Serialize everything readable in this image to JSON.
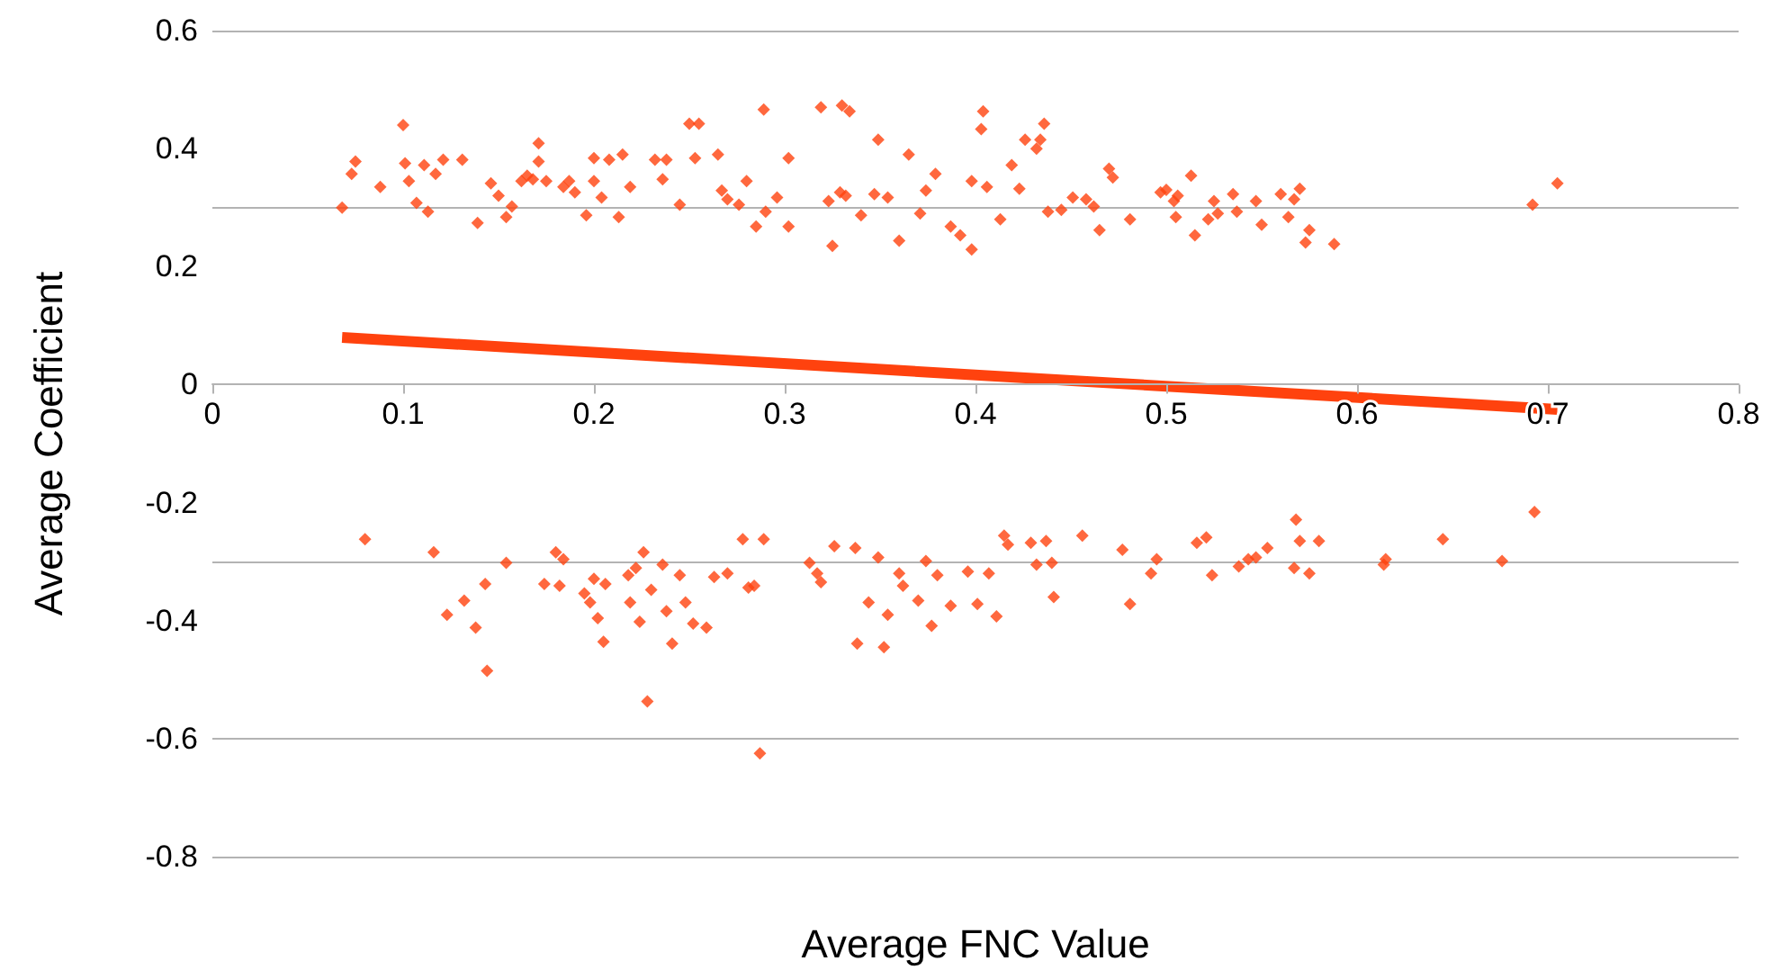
{
  "chart_data": {
    "type": "scatter",
    "xlabel": "Average FNC Value",
    "ylabel": "Average Coefficient",
    "xlim": [
      0,
      0.8
    ],
    "xticks": [
      0,
      0.1,
      0.2,
      0.3,
      0.4,
      0.5,
      0.6,
      0.7,
      0.8
    ],
    "ylim": [
      -0.8,
      0.6
    ],
    "yticks": [
      -0.8,
      -0.6,
      -0.4,
      -0.2,
      0,
      0.2,
      0.4,
      0.6
    ],
    "grid": "y",
    "marker": "diamond",
    "series": [
      {
        "color": "#ff420e",
        "x": [
          0.068,
          0.073,
          0.075,
          0.088,
          0.1,
          0.101,
          0.103,
          0.107,
          0.113,
          0.111,
          0.117,
          0.121,
          0.131,
          0.139,
          0.146,
          0.15,
          0.154,
          0.157,
          0.162,
          0.165,
          0.168,
          0.171,
          0.171,
          0.175,
          0.184,
          0.187,
          0.19,
          0.196,
          0.2,
          0.2,
          0.204,
          0.208,
          0.215,
          0.219,
          0.213,
          0.232,
          0.236,
          0.238,
          0.245,
          0.25,
          0.253,
          0.255,
          0.265,
          0.267,
          0.27,
          0.276,
          0.28,
          0.289,
          0.285,
          0.29,
          0.296,
          0.302,
          0.302,
          0.319,
          0.323,
          0.325,
          0.33,
          0.334,
          0.329,
          0.332,
          0.34,
          0.349,
          0.347,
          0.354,
          0.36,
          0.365,
          0.371,
          0.374,
          0.379,
          0.387,
          0.392,
          0.398,
          0.398,
          0.404,
          0.403,
          0.406,
          0.413,
          0.419,
          0.423,
          0.426,
          0.432,
          0.434,
          0.436,
          0.438,
          0.445,
          0.451,
          0.458,
          0.462,
          0.465,
          0.47,
          0.472,
          0.481,
          0.497,
          0.5,
          0.504,
          0.505,
          0.506,
          0.513,
          0.515,
          0.522,
          0.525,
          0.527,
          0.535,
          0.537,
          0.547,
          0.55,
          0.56,
          0.564,
          0.567,
          0.57,
          0.573,
          0.575,
          0.588,
          0.692,
          0.705,
          0.08,
          0.116,
          0.123,
          0.132,
          0.138,
          0.143,
          0.144,
          0.154,
          0.174,
          0.18,
          0.182,
          0.184,
          0.195,
          0.198,
          0.2,
          0.202,
          0.205,
          0.206,
          0.218,
          0.219,
          0.222,
          0.224,
          0.226,
          0.228,
          0.23,
          0.236,
          0.238,
          0.241,
          0.245,
          0.248,
          0.252,
          0.259,
          0.263,
          0.27,
          0.278,
          0.281,
          0.284,
          0.287,
          0.289,
          0.313,
          0.317,
          0.319,
          0.326,
          0.337,
          0.338,
          0.344,
          0.349,
          0.352,
          0.354,
          0.36,
          0.362,
          0.37,
          0.374,
          0.377,
          0.38,
          0.387,
          0.396,
          0.401,
          0.407,
          0.411,
          0.415,
          0.417,
          0.429,
          0.432,
          0.437,
          0.44,
          0.441,
          0.456,
          0.477,
          0.481,
          0.492,
          0.495,
          0.516,
          0.521,
          0.524,
          0.538,
          0.543,
          0.547,
          0.553,
          0.567,
          0.568,
          0.57,
          0.575,
          0.58,
          0.614,
          0.615,
          0.645,
          0.676,
          0.693
        ],
        "values": [
          0.3,
          0.357,
          0.378,
          0.335,
          0.44,
          0.375,
          0.345,
          0.308,
          0.293,
          0.372,
          0.357,
          0.381,
          0.381,
          0.274,
          0.341,
          0.32,
          0.284,
          0.302,
          0.345,
          0.354,
          0.348,
          0.409,
          0.378,
          0.345,
          0.335,
          0.345,
          0.326,
          0.287,
          0.345,
          0.384,
          0.317,
          0.381,
          0.39,
          0.335,
          0.284,
          0.381,
          0.348,
          0.381,
          0.305,
          0.442,
          0.384,
          0.442,
          0.39,
          0.329,
          0.314,
          0.305,
          0.345,
          0.466,
          0.268,
          0.293,
          0.317,
          0.384,
          0.268,
          0.47,
          0.311,
          0.235,
          0.473,
          0.463,
          0.326,
          0.32,
          0.287,
          0.415,
          0.323,
          0.317,
          0.244,
          0.39,
          0.29,
          0.329,
          0.357,
          0.268,
          0.253,
          0.229,
          0.345,
          0.463,
          0.433,
          0.335,
          0.28,
          0.372,
          0.332,
          0.415,
          0.4,
          0.415,
          0.442,
          0.293,
          0.296,
          0.317,
          0.314,
          0.302,
          0.262,
          0.366,
          0.351,
          0.28,
          0.326,
          0.33,
          0.311,
          0.284,
          0.32,
          0.354,
          0.253,
          0.28,
          0.311,
          0.29,
          0.323,
          0.293,
          0.311,
          0.271,
          0.323,
          0.284,
          0.314,
          0.332,
          0.241,
          0.262,
          0.238,
          0.305,
          0.341,
          -0.262,
          -0.284,
          -0.39,
          -0.366,
          -0.412,
          -0.338,
          -0.485,
          -0.302,
          -0.338,
          -0.284,
          -0.341,
          -0.296,
          -0.354,
          -0.369,
          -0.329,
          -0.396,
          -0.436,
          -0.338,
          -0.323,
          -0.369,
          -0.311,
          -0.402,
          -0.284,
          -0.537,
          -0.348,
          -0.305,
          -0.384,
          -0.439,
          -0.323,
          -0.369,
          -0.405,
          -0.412,
          -0.326,
          -0.32,
          -0.262,
          -0.344,
          -0.341,
          -0.625,
          -0.262,
          -0.302,
          -0.32,
          -0.335,
          -0.274,
          -0.277,
          -0.439,
          -0.369,
          -0.293,
          -0.445,
          -0.39,
          -0.32,
          -0.341,
          -0.366,
          -0.299,
          -0.409,
          -0.323,
          -0.375,
          -0.317,
          -0.372,
          -0.32,
          -0.393,
          -0.256,
          -0.271,
          -0.268,
          -0.305,
          -0.265,
          -0.302,
          -0.36,
          -0.256,
          -0.28,
          -0.372,
          -0.32,
          -0.296,
          -0.268,
          -0.259,
          -0.323,
          -0.308,
          -0.296,
          -0.293,
          -0.277,
          -0.311,
          -0.229,
          -0.265,
          -0.32,
          -0.265,
          -0.305,
          -0.296,
          -0.262,
          -0.299,
          -0.216
        ]
      },
      {
        "type": "line",
        "color": "#ff420e",
        "marker": "none",
        "x": [
          0.068,
          0.705
        ],
        "values": [
          0.08,
          -0.042
        ]
      }
    ]
  }
}
